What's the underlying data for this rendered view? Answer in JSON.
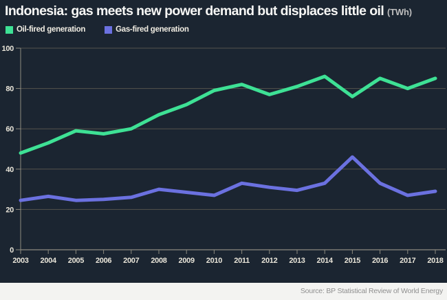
{
  "header": {
    "unit_suffix": "(TWh)"
  },
  "chart_data": {
    "type": "line",
    "title": "Indonesia: gas meets new power demand but displaces little oil",
    "unit": "TWh",
    "x": [
      2003,
      2004,
      2005,
      2006,
      2007,
      2008,
      2009,
      2010,
      2011,
      2012,
      2013,
      2014,
      2015,
      2016,
      2017,
      2018
    ],
    "series": [
      {
        "name": "Oil-fired generation",
        "color": "#3ee195",
        "values": [
          48,
          53,
          59,
          57.5,
          60,
          67,
          72,
          79,
          82,
          77,
          81,
          86,
          76,
          85,
          80,
          85
        ]
      },
      {
        "name": "Gas-fired generation",
        "color": "#6b71e0",
        "values": [
          24.5,
          26.5,
          24.5,
          25,
          26,
          30,
          28.5,
          27,
          33,
          31,
          29.5,
          33,
          46,
          33,
          27,
          29
        ]
      }
    ],
    "ylim": [
      0,
      100
    ],
    "yticks": [
      0,
      20,
      40,
      60,
      80,
      100
    ],
    "grid": true,
    "legend_position": "top-left"
  },
  "colors": {
    "background": "#1b2531",
    "grid": "#56544d",
    "axis": "#8d8a7f",
    "tick_label": "#e9e5d9",
    "title_text": "#f7f7f5",
    "suffix_text": "#bdbdbd",
    "footer_bg": "#f3f3f1",
    "footer_text": "#8f8f8f"
  },
  "footer": {
    "source": "Source: BP Statistical Review of World Energy"
  }
}
